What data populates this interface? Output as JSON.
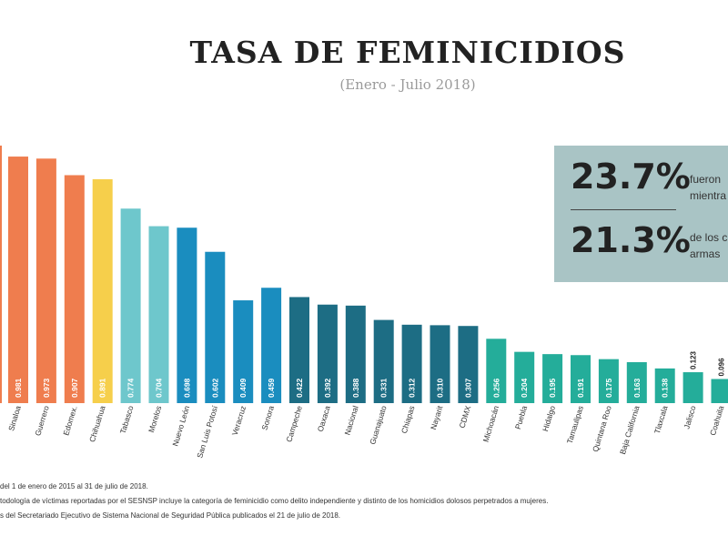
{
  "header": {
    "title": "TASA DE FEMINICIDIOS",
    "subtitle": "(Enero - Julio 2018)"
  },
  "stats": [
    {
      "value": "23.7%",
      "line1": "fueron",
      "line2": "mientra"
    },
    {
      "value": "21.3%",
      "line1": "de los c",
      "line2": "armas"
    }
  ],
  "footnotes": [
    "del 1 de enero de 2015 al 31 de julio de 2018.",
    "todología de víctimas reportadas por el SESNSP incluye la categoría de feminicidio como delito independiente y distinto de los homicidios dolosos perpetrados a mujeres.",
    "s del Secretariado Ejecutivo de Sistema Nacional de Seguridad Pública publicados el 21 de julio de 2018."
  ],
  "colors": {
    "orange": "#ef7d4e",
    "yellow": "#f6cf4b",
    "turquoise": "#6ec7cc",
    "blue": "#1a8dbf",
    "teal": "#1d6d84",
    "green": "#24ad9a"
  },
  "chart_data": {
    "type": "bar",
    "title": "TASA DE FEMINICIDIOS",
    "subtitle": "(Enero - Julio 2018)",
    "categories": [
      "Sinaloa",
      "Guerrero",
      "Edomex.",
      "Chihuahua",
      "Tabasco",
      "Morelos",
      "Nuevo León",
      "San Luis Potosí",
      "Veracruz",
      "Sonora",
      "Campeche",
      "Oaxaca",
      "Nacional",
      "Guanajuato",
      "Chiapas",
      "Nayarit",
      "CDMX",
      "Michoacán",
      "Puebla",
      "Hidalgo",
      "Tamaulipas",
      "Quintana Roo",
      "Baja California",
      "Tlaxcala",
      "Jalisco",
      "Coahuila"
    ],
    "values": [
      0.981,
      0.973,
      0.907,
      0.891,
      0.774,
      0.704,
      0.698,
      0.602,
      0.409,
      0.459,
      0.422,
      0.392,
      0.388,
      0.331,
      0.312,
      0.31,
      0.307,
      0.256,
      0.204,
      0.195,
      0.191,
      0.175,
      0.163,
      0.138,
      0.123,
      0.096
    ],
    "value_labels": [
      "0.981",
      "0.973",
      "0.907",
      "0.891",
      "0.774",
      "0.704",
      "0.698",
      "0.602",
      "0.409",
      "0.459",
      "0.422",
      "0.392",
      "0.388",
      "0.331",
      "0.312",
      "0.310",
      "0.307",
      "0.256",
      "0.204",
      "0.195",
      "0.191",
      "0.175",
      "0.163",
      "0.138",
      "0.123",
      "0.096"
    ],
    "bar_colors": [
      "orange",
      "orange",
      "orange",
      "yellow",
      "turquoise",
      "turquoise",
      "blue",
      "blue",
      "blue",
      "blue",
      "teal",
      "teal",
      "teal",
      "teal",
      "teal",
      "teal",
      "teal",
      "green",
      "green",
      "green",
      "green",
      "green",
      "green",
      "green",
      "green",
      "green"
    ],
    "partial_bar_at_left_edge": {
      "color": "orange"
    },
    "ylim": [
      0,
      1.05
    ],
    "grid": false,
    "legend": "none"
  }
}
